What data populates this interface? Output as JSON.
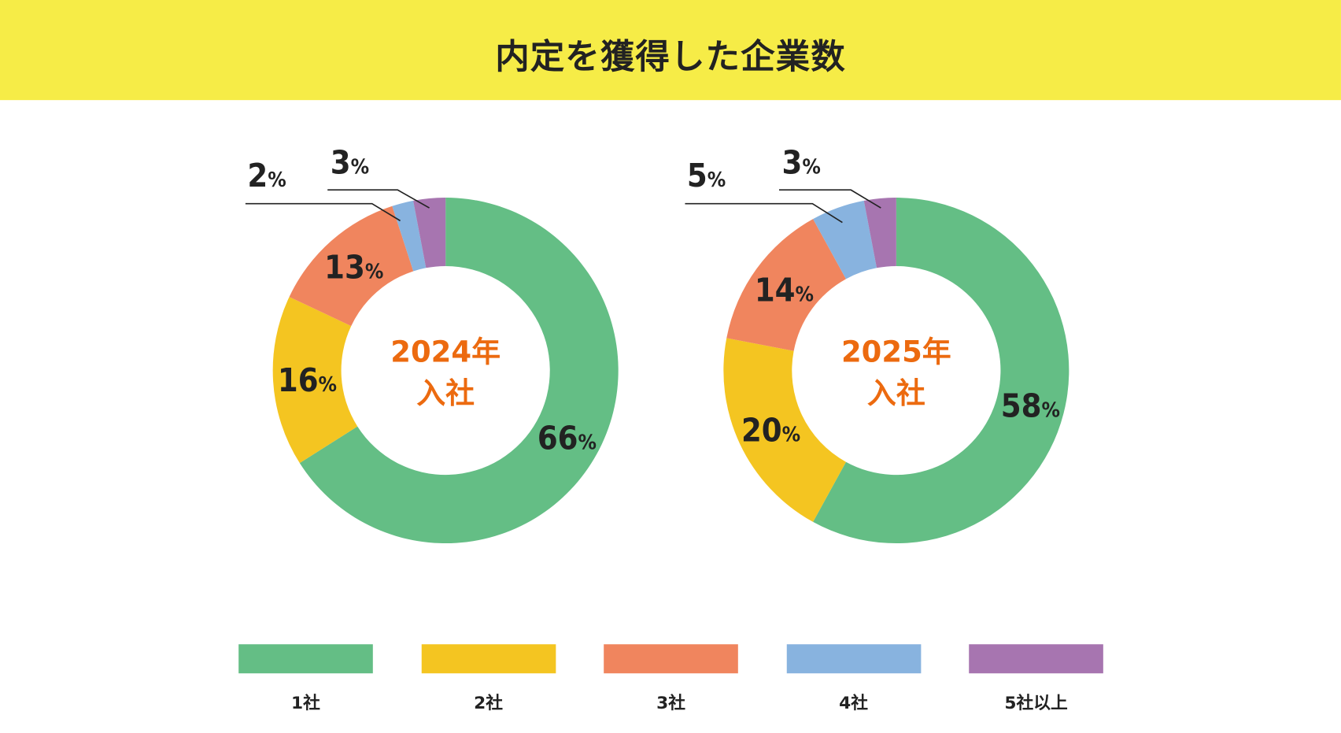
{
  "chart_data": [
    {
      "type": "pie",
      "title": "内定を獲得した企業数",
      "center_label": [
        "2024年",
        "入社"
      ],
      "categories": [
        "1社",
        "2社",
        "3社",
        "4社",
        "5社以上"
      ],
      "values": [
        66,
        16,
        13,
        2,
        3
      ],
      "labels": [
        "66",
        "16",
        "13",
        "2",
        "3"
      ],
      "unit": "%"
    },
    {
      "type": "pie",
      "title": "内定を獲得した企業数",
      "center_label": [
        "2025年",
        "入社"
      ],
      "categories": [
        "1社",
        "2社",
        "3社",
        "4社",
        "5社以上"
      ],
      "values": [
        58,
        20,
        14,
        5,
        3
      ],
      "labels": [
        "58",
        "20",
        "14",
        "5",
        "3"
      ],
      "unit": "%"
    }
  ],
  "header": {
    "title": "内定を獲得した企業数"
  },
  "legend": [
    {
      "label": "1社",
      "color": "#64be85"
    },
    {
      "label": "2社",
      "color": "#f4c521"
    },
    {
      "label": "3社",
      "color": "#f0855e"
    },
    {
      "label": "4社",
      "color": "#88b3df"
    },
    {
      "label": "5社以上",
      "color": "#a775b0"
    }
  ],
  "colors": {
    "header_bg": "#f6ec47",
    "center_text": "#ec6a0f"
  }
}
